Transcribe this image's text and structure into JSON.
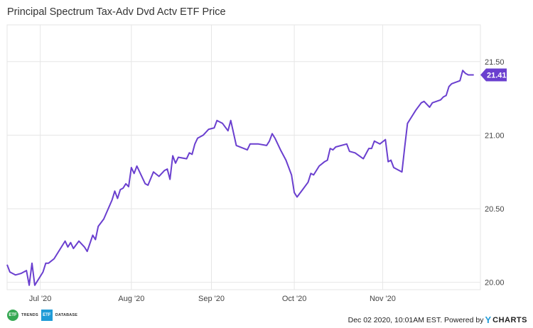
{
  "title": "Principal Spectrum Tax-Adv Dvd Actv ETF Price",
  "footer": {
    "timestamp_text": "Dec 02 2020, 10:01AM EST. Powered by",
    "ycharts_y": "Y",
    "ycharts_rest": "CHARTS",
    "etf_trends_mark": "ETF",
    "etf_trends_word": "TRENDS",
    "etf_database_mark": "ETF",
    "etf_database_word": "DATABASE"
  },
  "colors": {
    "line": "#6a3fcf",
    "badge": "#6a3fcf",
    "grid": "#e6e6e6"
  },
  "chart_data": {
    "type": "line",
    "title": "Principal Spectrum Tax-Adv Dvd Actv ETF Price",
    "xlabel": "",
    "ylabel": "",
    "ylim": [
      19.95,
      21.75
    ],
    "y_ticks": [
      20.0,
      20.5,
      21.0,
      21.5
    ],
    "y_tick_labels": [
      "20.00",
      "20.50",
      "21.00",
      "21.50"
    ],
    "x_ticks": [
      {
        "date": "2020-07-01",
        "label": "Jul '20"
      },
      {
        "date": "2020-08-03",
        "label": "Aug '20"
      },
      {
        "date": "2020-09-01",
        "label": "Sep '20"
      },
      {
        "date": "2020-10-01",
        "label": "Oct '20"
      },
      {
        "date": "2020-11-02",
        "label": "Nov '20"
      }
    ],
    "xlim": [
      "2020-06-19",
      "2020-12-02"
    ],
    "last_value_label": "21.41",
    "grid": true,
    "series": [
      {
        "points": [
          [
            "2020-06-19",
            20.12
          ],
          [
            "2020-06-20",
            20.07
          ],
          [
            "2020-06-22",
            20.05
          ],
          [
            "2020-06-24",
            20.06
          ],
          [
            "2020-06-26",
            20.08
          ],
          [
            "2020-06-27",
            19.98
          ],
          [
            "2020-06-28",
            20.13
          ],
          [
            "2020-06-29",
            19.98
          ],
          [
            "2020-07-02",
            20.07
          ],
          [
            "2020-07-03",
            20.13
          ],
          [
            "2020-07-04",
            20.13
          ],
          [
            "2020-07-06",
            20.16
          ],
          [
            "2020-07-08",
            20.22
          ],
          [
            "2020-07-10",
            20.28
          ],
          [
            "2020-07-11",
            20.24
          ],
          [
            "2020-07-12",
            20.27
          ],
          [
            "2020-07-13",
            20.23
          ],
          [
            "2020-07-15",
            20.28
          ],
          [
            "2020-07-17",
            20.24
          ],
          [
            "2020-07-18",
            20.21
          ],
          [
            "2020-07-20",
            20.32
          ],
          [
            "2020-07-21",
            20.29
          ],
          [
            "2020-07-22",
            20.38
          ],
          [
            "2020-07-24",
            20.43
          ],
          [
            "2020-07-27",
            20.56
          ],
          [
            "2020-07-28",
            20.62
          ],
          [
            "2020-07-29",
            20.57
          ],
          [
            "2020-07-30",
            20.63
          ],
          [
            "2020-07-31",
            20.64
          ],
          [
            "2020-08-01",
            20.67
          ],
          [
            "2020-08-02",
            20.65
          ],
          [
            "2020-08-03",
            20.78
          ],
          [
            "2020-08-04",
            20.74
          ],
          [
            "2020-08-05",
            20.79
          ],
          [
            "2020-08-08",
            20.67
          ],
          [
            "2020-08-09",
            20.66
          ],
          [
            "2020-08-11",
            20.75
          ],
          [
            "2020-08-13",
            20.72
          ],
          [
            "2020-08-15",
            20.76
          ],
          [
            "2020-08-16",
            20.77
          ],
          [
            "2020-08-17",
            20.7
          ],
          [
            "2020-08-18",
            20.86
          ],
          [
            "2020-08-19",
            20.81
          ],
          [
            "2020-08-20",
            20.85
          ],
          [
            "2020-08-23",
            20.84
          ],
          [
            "2020-08-24",
            20.88
          ],
          [
            "2020-08-25",
            20.87
          ],
          [
            "2020-08-26",
            20.94
          ],
          [
            "2020-08-27",
            20.98
          ],
          [
            "2020-08-29",
            21.0
          ],
          [
            "2020-08-31",
            21.04
          ],
          [
            "2020-09-02",
            21.05
          ],
          [
            "2020-09-03",
            21.1
          ],
          [
            "2020-09-05",
            21.08
          ],
          [
            "2020-09-07",
            21.03
          ],
          [
            "2020-09-08",
            21.1
          ],
          [
            "2020-09-10",
            20.93
          ],
          [
            "2020-09-14",
            20.9
          ],
          [
            "2020-09-15",
            20.94
          ],
          [
            "2020-09-18",
            20.94
          ],
          [
            "2020-09-21",
            20.93
          ],
          [
            "2020-09-22",
            20.96
          ],
          [
            "2020-09-23",
            21.01
          ],
          [
            "2020-09-24",
            20.98
          ],
          [
            "2020-09-26",
            20.9
          ],
          [
            "2020-09-28",
            20.83
          ],
          [
            "2020-09-30",
            20.73
          ],
          [
            "2020-10-01",
            20.61
          ],
          [
            "2020-10-02",
            20.58
          ],
          [
            "2020-10-04",
            20.63
          ],
          [
            "2020-10-06",
            20.68
          ],
          [
            "2020-10-07",
            20.74
          ],
          [
            "2020-10-08",
            20.73
          ],
          [
            "2020-10-10",
            20.79
          ],
          [
            "2020-10-12",
            20.82
          ],
          [
            "2020-10-13",
            20.83
          ],
          [
            "2020-10-14",
            20.91
          ],
          [
            "2020-10-15",
            20.9
          ],
          [
            "2020-10-16",
            20.92
          ],
          [
            "2020-10-20",
            20.94
          ],
          [
            "2020-10-21",
            20.89
          ],
          [
            "2020-10-23",
            20.88
          ],
          [
            "2020-10-26",
            20.84
          ],
          [
            "2020-10-28",
            20.91
          ],
          [
            "2020-10-29",
            20.91
          ],
          [
            "2020-10-30",
            20.96
          ],
          [
            "2020-11-01",
            20.94
          ],
          [
            "2020-11-03",
            20.97
          ],
          [
            "2020-11-04",
            20.82
          ],
          [
            "2020-11-05",
            20.83
          ],
          [
            "2020-11-06",
            20.78
          ],
          [
            "2020-11-09",
            20.75
          ],
          [
            "2020-11-10",
            20.92
          ],
          [
            "2020-11-11",
            21.08
          ],
          [
            "2020-11-12",
            21.11
          ],
          [
            "2020-11-14",
            21.17
          ],
          [
            "2020-11-16",
            21.22
          ],
          [
            "2020-11-17",
            21.23
          ],
          [
            "2020-11-18",
            21.21
          ],
          [
            "2020-11-19",
            21.19
          ],
          [
            "2020-11-20",
            21.22
          ],
          [
            "2020-11-23",
            21.24
          ],
          [
            "2020-11-24",
            21.26
          ],
          [
            "2020-11-25",
            21.27
          ],
          [
            "2020-11-26",
            21.33
          ],
          [
            "2020-11-27",
            21.35
          ],
          [
            "2020-11-30",
            21.37
          ],
          [
            "2020-12-01",
            21.44
          ],
          [
            "2020-12-02",
            21.42
          ],
          [
            "2020-12-03",
            21.41
          ],
          [
            "2020-12-05",
            21.41
          ]
        ]
      }
    ]
  }
}
